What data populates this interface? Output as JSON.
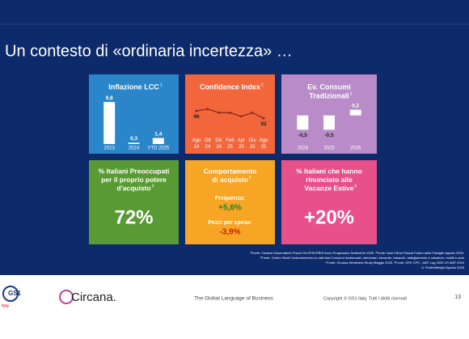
{
  "title": "Un contesto di «ordinaria incertezza» …",
  "chart_data": [
    {
      "type": "bar",
      "title": "Inflazione LCC",
      "sup": "1",
      "color": "#ffffff",
      "categories": [
        "2023",
        "2024",
        "YTD 2025"
      ],
      "values": [
        9.8,
        0.3,
        1.4
      ],
      "value_labels": [
        "9,8",
        "0,3",
        "1,4"
      ],
      "ylim": [
        0,
        10
      ]
    },
    {
      "type": "line",
      "title": "Confidence Index",
      "sup": "2",
      "color": "#8a2a1a",
      "categories": [
        "Ago 24",
        "Ott 24",
        "Dic 24",
        "Feb 25",
        "Apr 25",
        "Giu 25",
        "Ago 25"
      ],
      "values": [
        96,
        97,
        95,
        95,
        93,
        95,
        92
      ],
      "ylim": [
        85,
        100
      ]
    },
    {
      "type": "bar",
      "title": [
        "Ev. Consumi",
        "Tradizionali"
      ],
      "sup": "3",
      "color": "#ffffff",
      "categories": [
        "2024",
        "2025",
        "2026"
      ],
      "values": [
        -0.5,
        -0.5,
        0.2
      ],
      "value_labels": [
        "-0,5",
        "-0,5",
        "0,2"
      ],
      "ylim": [
        -1,
        0.5
      ]
    }
  ],
  "tiles": [
    {
      "title": [
        "% Italiani Preoccupati",
        "per il proprio potere",
        "d'acquisto"
      ],
      "sup": "4",
      "value": "72%"
    },
    {
      "title": [
        "Comportamento",
        "di acquisto"
      ],
      "sup": "5",
      "items": [
        {
          "label": "Frequenza:",
          "value": "+5,6%"
        },
        {
          "label": "Pezzi per spesa:",
          "value": "-3,9%"
        }
      ]
    },
    {
      "title": [
        "% Italiani che hanno",
        "rinunciato alle",
        "Vacanze Estive"
      ],
      "sup": "6",
      "value": "+20%"
    }
  ],
  "footnotes": [
    "¹Fonte: Circana Osservatorio Prezzi ISLSPSCPBIS Anno Progressivo Settembre 2025. ²Fonte: Istat Clima Fiducia Futuro delle Famiglie Agosto 2025.",
    "³Fonte: Centro Studi Confcommercio su dati Istat Consumi tradizionali= alimentari, bevande, tabacchi, abbigliamento e calzature, mobili e auto",
    "⁴Fonte: Circana Sentiment Study Maggio 2025. ⁵Fonte: GFK CPS - MAT Lug 2025 VS MAT 2024",
    "6. Federalberghi Agosto 2025"
  ],
  "footer": {
    "logo1": "GS1",
    "logo1_sub": "Italy",
    "logo2": "Circana.",
    "tagline": "The Global Language of Business",
    "copyright": "Copyright © GS1 Italy. Tutti i diritti riservati",
    "page": "13"
  }
}
